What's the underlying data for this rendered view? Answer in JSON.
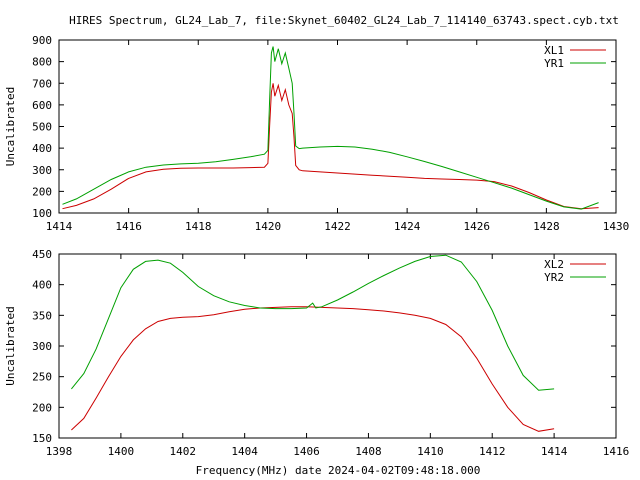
{
  "title": "HIRES Spectrum, GL24_Lab_7, file:Skynet_60402_GL24_Lab_7_114140_63743.spect.cyb.txt",
  "xlabel": "Frequency(MHz) date 2024-04-02T09:48:18.000",
  "colors": {
    "red": "#cc0000",
    "green": "#00a000"
  },
  "chart_data": [
    {
      "type": "line",
      "ylabel": "Uncalibrated",
      "xlim": [
        1414,
        1430
      ],
      "ylim": [
        100,
        900
      ],
      "xticks": [
        "1414",
        "1416",
        "1418",
        "1420",
        "1422",
        "1424",
        "1426",
        "1428",
        "1430"
      ],
      "yticks": [
        "100",
        "200",
        "300",
        "400",
        "500",
        "600",
        "700",
        "800",
        "900"
      ],
      "legend": "top-right",
      "series": [
        {
          "name": "XL1",
          "color": "#cc0000",
          "x": [
            1414.1,
            1414.5,
            1415,
            1415.5,
            1416,
            1416.5,
            1417,
            1417.5,
            1418,
            1418.5,
            1419,
            1419.5,
            1419.9,
            1420.0,
            1420.05,
            1420.1,
            1420.15,
            1420.2,
            1420.3,
            1420.4,
            1420.5,
            1420.6,
            1420.7,
            1420.75,
            1420.8,
            1420.9,
            1421,
            1421.5,
            1422,
            1422.5,
            1423,
            1423.5,
            1424,
            1424.5,
            1425,
            1425.5,
            1426,
            1426.5,
            1427,
            1427.5,
            1428,
            1428.5,
            1429,
            1429.5
          ],
          "y": [
            120,
            135,
            165,
            210,
            260,
            290,
            302,
            307,
            308,
            308,
            308,
            310,
            312,
            330,
            500,
            660,
            700,
            640,
            690,
            620,
            670,
            600,
            560,
            450,
            320,
            300,
            295,
            290,
            285,
            280,
            275,
            270,
            265,
            260,
            257,
            255,
            252,
            245,
            225,
            195,
            160,
            130,
            120,
            125
          ]
        },
        {
          "name": "YR1",
          "color": "#00a000",
          "x": [
            1414.1,
            1414.5,
            1415,
            1415.5,
            1416,
            1416.5,
            1417,
            1417.5,
            1418,
            1418.5,
            1419,
            1419.5,
            1419.9,
            1420.0,
            1420.05,
            1420.1,
            1420.15,
            1420.2,
            1420.3,
            1420.4,
            1420.5,
            1420.6,
            1420.7,
            1420.75,
            1420.8,
            1420.9,
            1421,
            1421.5,
            1422,
            1422.5,
            1423,
            1423.5,
            1424,
            1424.5,
            1425,
            1425.5,
            1426,
            1426.5,
            1427,
            1427.5,
            1428,
            1428.5,
            1429,
            1429.5
          ],
          "y": [
            140,
            165,
            210,
            255,
            290,
            312,
            322,
            327,
            330,
            337,
            348,
            360,
            372,
            390,
            620,
            840,
            870,
            800,
            860,
            790,
            840,
            770,
            700,
            560,
            410,
            398,
            400,
            405,
            408,
            405,
            395,
            380,
            360,
            338,
            315,
            290,
            265,
            240,
            215,
            185,
            155,
            128,
            118,
            148
          ]
        }
      ]
    },
    {
      "type": "line",
      "ylabel": "Uncalibrated",
      "xlim": [
        1398,
        1416
      ],
      "ylim": [
        150,
        450
      ],
      "xticks": [
        "1398",
        "1400",
        "1402",
        "1404",
        "1406",
        "1408",
        "1410",
        "1412",
        "1414",
        "1416"
      ],
      "yticks": [
        "150",
        "200",
        "250",
        "300",
        "350",
        "400",
        "450"
      ],
      "legend": "top-right",
      "series": [
        {
          "name": "XL2",
          "color": "#cc0000",
          "x": [
            1398.4,
            1398.8,
            1399.2,
            1399.6,
            1400,
            1400.4,
            1400.8,
            1401.2,
            1401.6,
            1402,
            1402.5,
            1403,
            1403.5,
            1404,
            1404.5,
            1405,
            1405.5,
            1406,
            1406.5,
            1407,
            1407.5,
            1408,
            1408.5,
            1409,
            1409.5,
            1410,
            1410.5,
            1411,
            1411.5,
            1412,
            1412.5,
            1413,
            1413.5,
            1414
          ],
          "y": [
            163,
            182,
            215,
            250,
            283,
            310,
            328,
            340,
            345,
            347,
            348,
            351,
            356,
            360,
            362,
            363,
            364,
            364,
            363,
            362,
            361,
            359,
            357,
            354,
            350,
            345,
            335,
            315,
            280,
            238,
            200,
            172,
            161,
            165
          ]
        },
        {
          "name": "YR2",
          "color": "#00a000",
          "x": [
            1398.4,
            1398.8,
            1399.2,
            1399.6,
            1400,
            1400.4,
            1400.8,
            1401.2,
            1401.6,
            1402,
            1402.5,
            1403,
            1403.5,
            1404,
            1404.5,
            1405,
            1405.5,
            1406,
            1406.2,
            1406.3,
            1406.5,
            1407,
            1407.5,
            1408,
            1408.5,
            1409,
            1409.5,
            1410,
            1410.5,
            1411,
            1411.5,
            1412,
            1412.5,
            1413,
            1413.5,
            1414
          ],
          "y": [
            230,
            255,
            295,
            345,
            395,
            425,
            438,
            440,
            435,
            420,
            397,
            382,
            372,
            366,
            362,
            361,
            361,
            362,
            370,
            362,
            364,
            375,
            388,
            402,
            415,
            427,
            438,
            446,
            448,
            437,
            405,
            358,
            300,
            252,
            228,
            230
          ]
        }
      ]
    }
  ]
}
